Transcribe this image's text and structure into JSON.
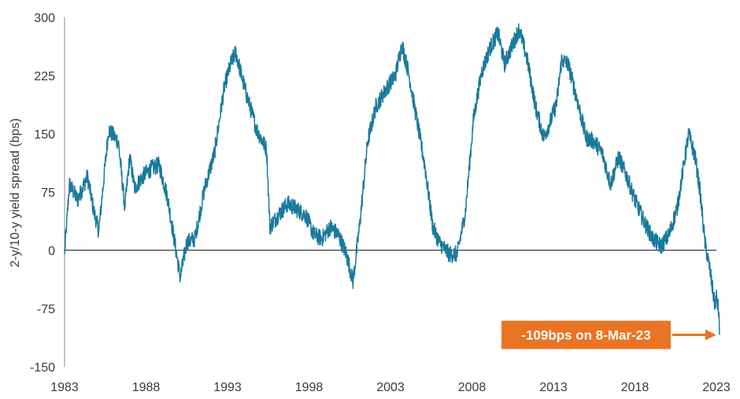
{
  "chart_data": {
    "type": "line",
    "title": "",
    "xlabel": "",
    "ylabel": "2-y/10-y yield spread (bps)",
    "xlim": [
      1983,
      2023
    ],
    "ylim": [
      -150,
      300
    ],
    "x_ticks": [
      "1983",
      "1988",
      "1993",
      "1998",
      "2003",
      "2008",
      "2013",
      "2018",
      "2023"
    ],
    "y_ticks": [
      "300",
      "225",
      "150",
      "75",
      "0",
      "-75",
      "-150"
    ],
    "grid": false,
    "legend": "none",
    "line_color": "#1a7a9c",
    "series": [
      {
        "points": [
          [
            1983.0,
            -5
          ],
          [
            1983.3,
            85
          ],
          [
            1983.8,
            65
          ],
          [
            1984.4,
            95
          ],
          [
            1984.8,
            50
          ],
          [
            1985.1,
            25
          ],
          [
            1985.7,
            155
          ],
          [
            1986.3,
            140
          ],
          [
            1986.7,
            55
          ],
          [
            1987.0,
            120
          ],
          [
            1987.3,
            80
          ],
          [
            1987.8,
            95
          ],
          [
            1988.3,
            105
          ],
          [
            1988.8,
            110
          ],
          [
            1989.3,
            70
          ],
          [
            1989.8,
            5
          ],
          [
            1990.1,
            -35
          ],
          [
            1990.5,
            10
          ],
          [
            1991.0,
            15
          ],
          [
            1991.6,
            80
          ],
          [
            1992.2,
            125
          ],
          [
            1992.8,
            210
          ],
          [
            1993.2,
            240
          ],
          [
            1993.5,
            255
          ],
          [
            1994.1,
            205
          ],
          [
            1994.8,
            155
          ],
          [
            1995.4,
            130
          ],
          [
            1995.6,
            30
          ],
          [
            1996.1,
            45
          ],
          [
            1996.7,
            60
          ],
          [
            1997.1,
            55
          ],
          [
            1997.8,
            45
          ],
          [
            1998.3,
            20
          ],
          [
            1998.8,
            15
          ],
          [
            1999.3,
            30
          ],
          [
            1999.8,
            20
          ],
          [
            2000.3,
            -5
          ],
          [
            2000.7,
            -40
          ],
          [
            2001.1,
            30
          ],
          [
            2001.6,
            140
          ],
          [
            2002.1,
            185
          ],
          [
            2002.8,
            210
          ],
          [
            2003.3,
            225
          ],
          [
            2003.7,
            265
          ],
          [
            2004.1,
            230
          ],
          [
            2004.6,
            170
          ],
          [
            2005.1,
            110
          ],
          [
            2005.6,
            30
          ],
          [
            2006.0,
            10
          ],
          [
            2006.6,
            -5
          ],
          [
            2007.1,
            -5
          ],
          [
            2007.6,
            50
          ],
          [
            2008.1,
            170
          ],
          [
            2008.6,
            230
          ],
          [
            2009.1,
            260
          ],
          [
            2009.6,
            280
          ],
          [
            2010.0,
            240
          ],
          [
            2010.6,
            270
          ],
          [
            2010.9,
            285
          ],
          [
            2011.4,
            245
          ],
          [
            2011.9,
            185
          ],
          [
            2012.4,
            145
          ],
          [
            2012.8,
            165
          ],
          [
            2013.2,
            190
          ],
          [
            2013.5,
            245
          ],
          [
            2013.9,
            240
          ],
          [
            2014.5,
            190
          ],
          [
            2015.0,
            145
          ],
          [
            2015.5,
            140
          ],
          [
            2016.0,
            125
          ],
          [
            2016.5,
            85
          ],
          [
            2017.0,
            120
          ],
          [
            2017.5,
            95
          ],
          [
            2018.0,
            65
          ],
          [
            2018.6,
            35
          ],
          [
            2019.1,
            15
          ],
          [
            2019.6,
            5
          ],
          [
            2020.1,
            20
          ],
          [
            2020.6,
            55
          ],
          [
            2021.0,
            110
          ],
          [
            2021.3,
            150
          ],
          [
            2021.7,
            120
          ],
          [
            2022.0,
            75
          ],
          [
            2022.3,
            10
          ],
          [
            2022.6,
            -25
          ],
          [
            2022.9,
            -70
          ],
          [
            2023.0,
            -60
          ],
          [
            2023.15,
            -80
          ],
          [
            2023.19,
            -109
          ]
        ]
      }
    ],
    "annotation": {
      "text": "-109bps on 8-Mar-23",
      "x": 2023.19,
      "y": -109,
      "color": "#e97424"
    }
  }
}
